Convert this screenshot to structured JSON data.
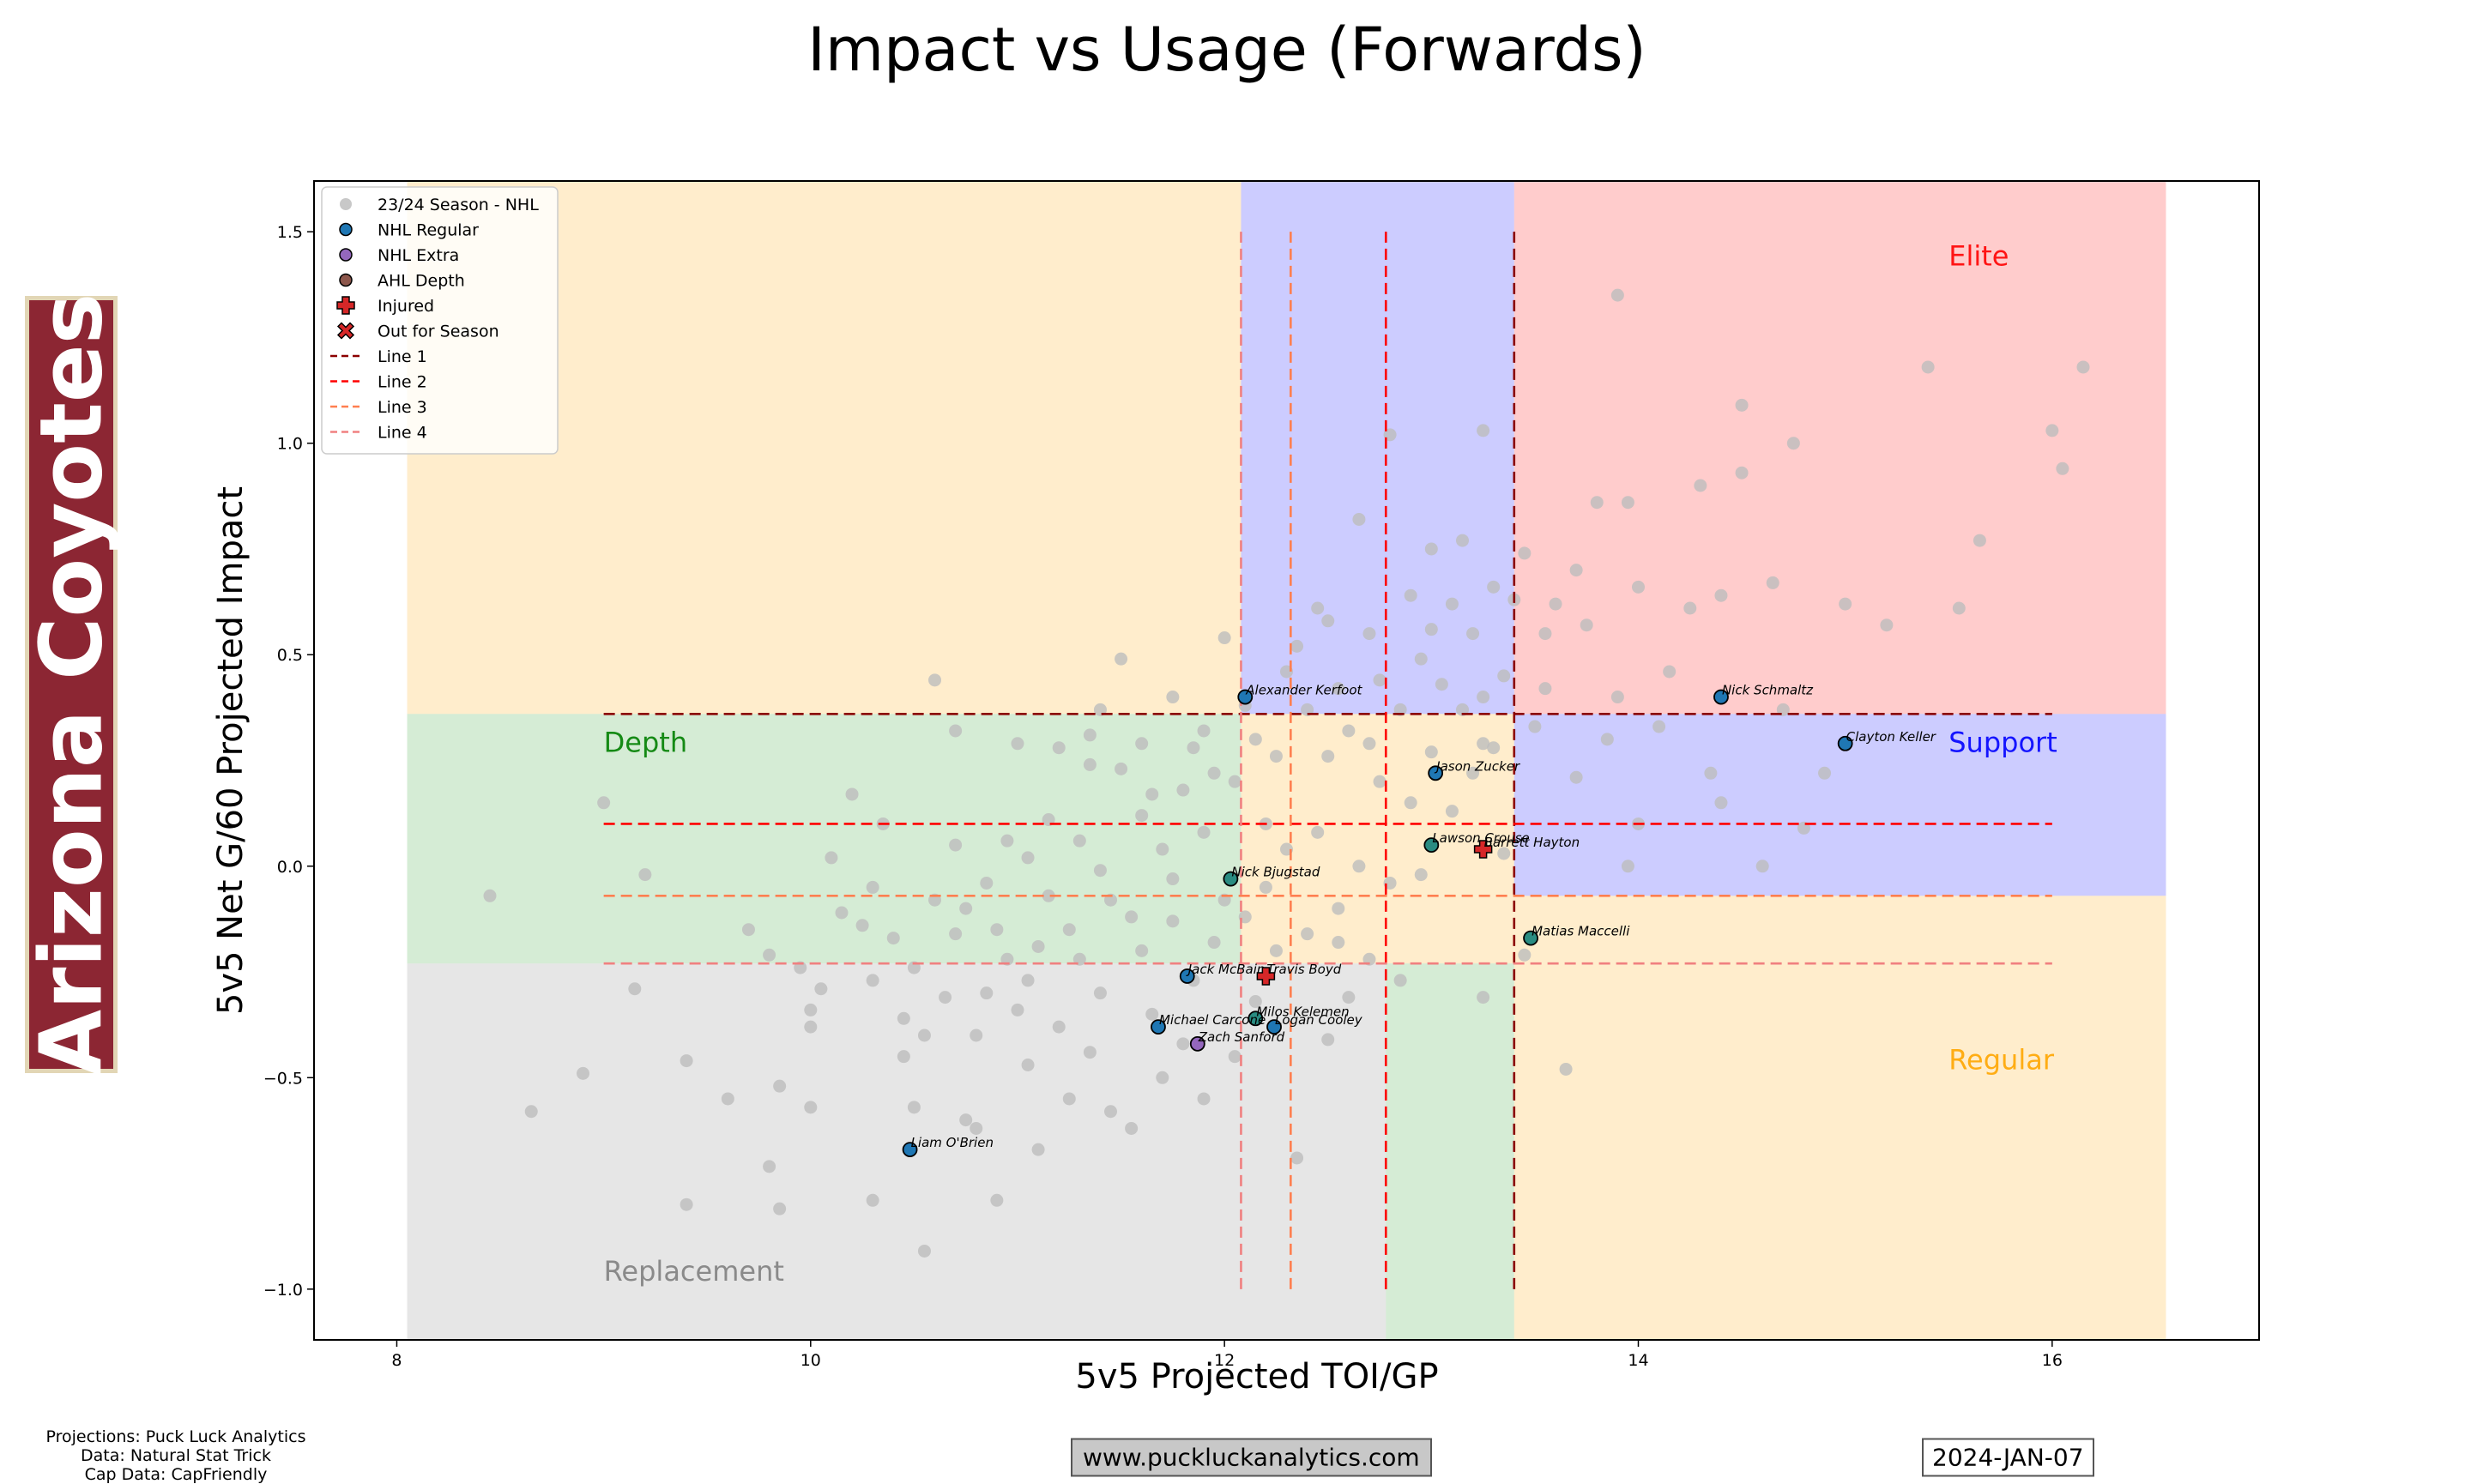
{
  "chart_data": {
    "type": "scatter",
    "title": "Impact vs Usage (Forwards)",
    "xlabel": "5v5 Projected TOI/GP",
    "ylabel": "5v5 Net G/60 Projected Impact",
    "xlim": [
      7.6,
      17.0
    ],
    "ylim": [
      -1.12,
      1.62
    ],
    "xticks": [
      8,
      10,
      12,
      14,
      16
    ],
    "yticks": [
      -1.0,
      -0.5,
      0.0,
      0.5,
      1.0,
      1.5
    ],
    "grid": false,
    "legend_position": "top-left",
    "legend": [
      {
        "label": "23/24 Season - NHL",
        "kind": "dot",
        "color": "#c8c8c8"
      },
      {
        "label": "NHL Regular",
        "kind": "dot",
        "color": "#1f77b4"
      },
      {
        "label": "NHL Extra",
        "kind": "dot",
        "color": "#9467bd"
      },
      {
        "label": "AHL Depth",
        "kind": "dot",
        "color": "#8c564b"
      },
      {
        "label": "Injured",
        "kind": "plus",
        "color": "#d62728"
      },
      {
        "label": "Out for Season",
        "kind": "cross",
        "color": "#d62728"
      },
      {
        "label": "Line 1",
        "kind": "line",
        "color": "#8b0000"
      },
      {
        "label": "Line 2",
        "kind": "line",
        "color": "#ff0000"
      },
      {
        "label": "Line 3",
        "kind": "line",
        "color": "#ff7f50"
      },
      {
        "label": "Line 4",
        "kind": "line",
        "color": "#f08080"
      }
    ],
    "regions": [
      {
        "name": "Depth",
        "x": [
          8.05,
          12.08
        ],
        "y": [
          -0.23,
          0.36
        ],
        "color": "#2ca02c",
        "label_at": [
          9.0,
          0.27
        ],
        "label_color": "#008000"
      },
      {
        "name": "Elite",
        "x": [
          13.4,
          16.55
        ],
        "y": [
          0.36,
          1.62
        ],
        "color": "#ff0000",
        "label_at": [
          15.5,
          1.42
        ],
        "label_color": "#ff0000"
      },
      {
        "name": "Support",
        "x": [
          13.4,
          16.55
        ],
        "y": [
          -0.07,
          0.36
        ],
        "color": "#0000ff",
        "label_at": [
          15.5,
          0.27
        ],
        "label_color": "#0000ff"
      },
      {
        "name": "Regular",
        "x": [
          13.4,
          16.55
        ],
        "y": [
          -1.12,
          -0.07
        ],
        "color": "#ffa500",
        "label_at": [
          15.5,
          -0.48
        ],
        "label_color": "#ffa500"
      },
      {
        "name": "Replacement",
        "x": [
          8.05,
          12.78
        ],
        "y": [
          -1.12,
          -0.23
        ],
        "color": "#808080",
        "label_at": [
          9.0,
          -0.98
        ],
        "label_color": "#808080"
      }
    ],
    "extra_shading": [
      {
        "x": [
          8.05,
          12.08
        ],
        "y": [
          0.36,
          1.62
        ],
        "color": "#ffa500"
      },
      {
        "x": [
          12.08,
          12.78
        ],
        "y": [
          -0.23,
          0.36
        ],
        "color": "#ffa500"
      },
      {
        "x": [
          12.78,
          13.4
        ],
        "y": [
          -0.23,
          0.36
        ],
        "color": "#ffa500"
      },
      {
        "x": [
          12.08,
          13.4
        ],
        "y": [
          0.36,
          1.62
        ],
        "color": "#0000ff"
      },
      {
        "x": [
          12.78,
          13.4
        ],
        "y": [
          -1.12,
          -0.23
        ],
        "color": "#2ca02c"
      }
    ],
    "lines": [
      {
        "name": "Line 1",
        "color": "#8b0000",
        "h": {
          "y": 0.36,
          "x": [
            9.0,
            16.0
          ]
        },
        "v": [
          {
            "x": 13.4,
            "y": [
              -1.0,
              1.5
            ]
          }
        ]
      },
      {
        "name": "Line 2",
        "color": "#ff0000",
        "h": {
          "y": 0.1,
          "x": [
            9.0,
            16.0
          ]
        },
        "v": [
          {
            "x": 12.78,
            "y": [
              -1.0,
              1.5
            ]
          }
        ]
      },
      {
        "name": "Line 3",
        "color": "#ff7f50",
        "h": {
          "y": -0.07,
          "x": [
            9.0,
            16.0
          ]
        },
        "v": [
          {
            "x": 12.32,
            "y": [
              -1.0,
              1.5
            ]
          }
        ]
      },
      {
        "name": "Line 4",
        "color": "#f08080",
        "h": {
          "y": -0.23,
          "x": [
            9.0,
            16.0
          ]
        },
        "v": [
          {
            "x": 12.08,
            "y": [
              -1.0,
              1.5
            ]
          }
        ]
      }
    ],
    "league_points": [
      [
        8.45,
        -0.07
      ],
      [
        8.65,
        -0.58
      ],
      [
        8.9,
        -0.49
      ],
      [
        9.0,
        0.15
      ],
      [
        9.15,
        -0.29
      ],
      [
        9.2,
        -0.02
      ],
      [
        9.4,
        -0.46
      ],
      [
        9.4,
        -0.8
      ],
      [
        9.6,
        -0.55
      ],
      [
        9.7,
        -0.15
      ],
      [
        9.8,
        -0.21
      ],
      [
        9.8,
        -0.71
      ],
      [
        9.85,
        -0.52
      ],
      [
        9.85,
        -0.81
      ],
      [
        9.95,
        -0.24
      ],
      [
        10.0,
        -0.34
      ],
      [
        10.0,
        -0.38
      ],
      [
        10.0,
        -0.57
      ],
      [
        10.05,
        -0.29
      ],
      [
        10.1,
        0.02
      ],
      [
        10.15,
        -0.11
      ],
      [
        10.2,
        0.17
      ],
      [
        10.25,
        -0.14
      ],
      [
        10.3,
        -0.05
      ],
      [
        10.3,
        -0.27
      ],
      [
        10.3,
        -0.79
      ],
      [
        10.4,
        -0.17
      ],
      [
        10.45,
        -0.36
      ],
      [
        10.45,
        -0.45
      ],
      [
        10.5,
        -0.24
      ],
      [
        10.5,
        -0.57
      ],
      [
        10.55,
        -0.4
      ],
      [
        10.55,
        -0.91
      ],
      [
        10.6,
        0.44
      ],
      [
        10.6,
        -0.08
      ],
      [
        10.65,
        -0.31
      ],
      [
        10.7,
        0.32
      ],
      [
        10.7,
        -0.16
      ],
      [
        10.75,
        -0.1
      ],
      [
        10.75,
        -0.6
      ],
      [
        10.8,
        -0.4
      ],
      [
        10.8,
        -0.62
      ],
      [
        10.85,
        -0.04
      ],
      [
        10.85,
        -0.3
      ],
      [
        10.9,
        -0.15
      ],
      [
        10.9,
        -0.79
      ],
      [
        10.95,
        0.06
      ],
      [
        10.95,
        -0.22
      ],
      [
        11.0,
        0.29
      ],
      [
        11.0,
        -0.34
      ],
      [
        11.05,
        -0.27
      ],
      [
        11.05,
        -0.47
      ],
      [
        11.1,
        -0.19
      ],
      [
        11.1,
        -0.67
      ],
      [
        11.15,
        0.11
      ],
      [
        11.15,
        -0.07
      ],
      [
        11.2,
        -0.38
      ],
      [
        11.25,
        -0.15
      ],
      [
        11.25,
        -0.55
      ],
      [
        11.3,
        0.06
      ],
      [
        11.3,
        -0.22
      ],
      [
        11.35,
        0.24
      ],
      [
        11.35,
        -0.44
      ],
      [
        11.4,
        0.37
      ],
      [
        11.4,
        -0.3
      ],
      [
        11.45,
        -0.08
      ],
      [
        11.45,
        -0.58
      ],
      [
        11.5,
        0.49
      ],
      [
        11.5,
        0.23
      ],
      [
        11.55,
        -0.12
      ],
      [
        11.55,
        -0.62
      ],
      [
        11.6,
        0.29
      ],
      [
        11.6,
        -0.2
      ],
      [
        11.65,
        0.17
      ],
      [
        11.65,
        -0.35
      ],
      [
        11.7,
        0.04
      ],
      [
        11.7,
        -0.5
      ],
      [
        11.75,
        0.4
      ],
      [
        11.75,
        -0.13
      ],
      [
        11.8,
        0.18
      ],
      [
        11.8,
        -0.42
      ],
      [
        11.85,
        0.28
      ],
      [
        11.85,
        -0.27
      ],
      [
        11.9,
        0.08
      ],
      [
        11.9,
        -0.55
      ],
      [
        11.95,
        0.22
      ],
      [
        11.95,
        -0.18
      ],
      [
        12.0,
        0.54
      ],
      [
        12.0,
        -0.08
      ],
      [
        12.05,
        0.2
      ],
      [
        12.05,
        -0.45
      ],
      [
        12.1,
        0.38
      ],
      [
        12.1,
        -0.12
      ],
      [
        12.15,
        0.3
      ],
      [
        12.15,
        -0.32
      ],
      [
        12.2,
        0.1
      ],
      [
        12.2,
        -0.05
      ],
      [
        12.25,
        0.26
      ],
      [
        12.25,
        -0.2
      ],
      [
        12.3,
        0.46
      ],
      [
        12.3,
        0.04
      ],
      [
        12.35,
        -0.69
      ],
      [
        12.4,
        0.37
      ],
      [
        12.4,
        -0.16
      ],
      [
        12.45,
        0.61
      ],
      [
        12.45,
        0.08
      ],
      [
        12.5,
        0.26
      ],
      [
        12.5,
        -0.41
      ],
      [
        12.55,
        0.42
      ],
      [
        12.55,
        -0.1
      ],
      [
        12.6,
        0.32
      ],
      [
        12.6,
        -0.31
      ],
      [
        12.65,
        0.82
      ],
      [
        12.65,
        0.0
      ],
      [
        12.7,
        0.55
      ],
      [
        12.7,
        -0.22
      ],
      [
        12.75,
        0.44
      ],
      [
        12.75,
        0.2
      ],
      [
        12.8,
        1.02
      ],
      [
        12.8,
        -0.04
      ],
      [
        12.85,
        0.37
      ],
      [
        12.9,
        0.64
      ],
      [
        12.9,
        0.15
      ],
      [
        12.95,
        0.49
      ],
      [
        12.95,
        -0.02
      ],
      [
        13.0,
        0.75
      ],
      [
        13.0,
        0.27
      ],
      [
        13.05,
        0.43
      ],
      [
        13.1,
        0.62
      ],
      [
        13.1,
        0.13
      ],
      [
        13.15,
        0.77
      ],
      [
        13.15,
        0.37
      ],
      [
        13.2,
        0.55
      ],
      [
        13.2,
        0.22
      ],
      [
        13.25,
        1.03
      ],
      [
        13.25,
        0.4
      ],
      [
        13.3,
        0.66
      ],
      [
        13.3,
        0.28
      ],
      [
        13.35,
        0.45
      ],
      [
        13.35,
        0.03
      ],
      [
        13.4,
        0.63
      ],
      [
        13.45,
        0.74
      ],
      [
        13.5,
        0.33
      ],
      [
        13.55,
        0.55
      ],
      [
        13.6,
        0.62
      ],
      [
        13.65,
        -0.48
      ],
      [
        13.7,
        0.7
      ],
      [
        13.7,
        0.21
      ],
      [
        13.75,
        0.57
      ],
      [
        13.8,
        0.86
      ],
      [
        13.85,
        0.3
      ],
      [
        13.9,
        0.4
      ],
      [
        13.9,
        1.35
      ],
      [
        13.95,
        0.86
      ],
      [
        14.0,
        0.66
      ],
      [
        14.0,
        0.1
      ],
      [
        14.1,
        0.33
      ],
      [
        14.15,
        0.46
      ],
      [
        14.25,
        0.61
      ],
      [
        14.3,
        0.9
      ],
      [
        14.35,
        0.22
      ],
      [
        14.4,
        0.64
      ],
      [
        14.5,
        0.93
      ],
      [
        14.5,
        1.09
      ],
      [
        14.6,
        0.0
      ],
      [
        14.65,
        0.67
      ],
      [
        14.7,
        0.37
      ],
      [
        14.75,
        1.0
      ],
      [
        14.8,
        0.09
      ],
      [
        14.9,
        0.22
      ],
      [
        15.0,
        0.62
      ],
      [
        15.2,
        0.57
      ],
      [
        15.4,
        1.18
      ],
      [
        15.55,
        0.61
      ],
      [
        15.65,
        0.77
      ],
      [
        16.0,
        1.03
      ],
      [
        16.05,
        0.94
      ],
      [
        16.15,
        1.18
      ],
      [
        11.2,
        0.28
      ],
      [
        11.35,
        0.31
      ],
      [
        11.6,
        0.12
      ],
      [
        11.9,
        0.32
      ],
      [
        12.15,
        -0.36
      ],
      [
        12.35,
        0.52
      ],
      [
        12.5,
        0.58
      ],
      [
        12.7,
        0.29
      ],
      [
        13.0,
        0.56
      ],
      [
        13.25,
        0.29
      ],
      [
        13.55,
        0.42
      ],
      [
        13.95,
        0.0
      ],
      [
        14.4,
        0.15
      ],
      [
        10.35,
        0.1
      ],
      [
        10.7,
        0.05
      ],
      [
        11.05,
        0.02
      ],
      [
        11.4,
        -0.01
      ],
      [
        11.75,
        -0.03
      ],
      [
        12.55,
        -0.18
      ],
      [
        12.85,
        -0.27
      ],
      [
        13.25,
        -0.31
      ],
      [
        13.45,
        -0.21
      ]
    ],
    "players": [
      {
        "name": "Alexander Kerfoot",
        "x": 12.1,
        "y": 0.4,
        "status": "NHL Regular"
      },
      {
        "name": "Nick Schmaltz",
        "x": 14.4,
        "y": 0.4,
        "status": "NHL Regular"
      },
      {
        "name": "Clayton Keller",
        "x": 15.0,
        "y": 0.29,
        "status": "NHL Regular"
      },
      {
        "name": "Jason Zucker",
        "x": 13.02,
        "y": 0.22,
        "status": "NHL Regular"
      },
      {
        "name": "Lawson Crouse",
        "x": 13.0,
        "y": 0.05,
        "status": "AHL Depth"
      },
      {
        "name": "Barrett Hayton",
        "x": 13.25,
        "y": 0.04,
        "status": "Injured"
      },
      {
        "name": "Nick Bjugstad",
        "x": 12.03,
        "y": -0.03,
        "status": "AHL Depth"
      },
      {
        "name": "Matias Maccelli",
        "x": 13.48,
        "y": -0.17,
        "status": "AHL Depth"
      },
      {
        "name": "Jack McBain",
        "x": 11.82,
        "y": -0.26,
        "status": "NHL Regular"
      },
      {
        "name": "Travis Boyd",
        "x": 12.2,
        "y": -0.26,
        "status": "Injured"
      },
      {
        "name": "Milos Kelemen",
        "x": 12.15,
        "y": -0.36,
        "status": "AHL Depth"
      },
      {
        "name": "Logan Cooley",
        "x": 12.24,
        "y": -0.38,
        "status": "NHL Regular"
      },
      {
        "name": "Michael Carcone",
        "x": 11.68,
        "y": -0.38,
        "status": "NHL Regular"
      },
      {
        "name": "Zach Sanford",
        "x": 11.87,
        "y": -0.42,
        "status": "NHL Extra"
      },
      {
        "name": "Liam O'Brien",
        "x": 10.48,
        "y": -0.67,
        "status": "NHL Regular"
      }
    ]
  },
  "team_name": "Arizona Coyotes",
  "credits": [
    "Projections: Puck Luck Analytics",
    "Data: Natural Stat Trick",
    "Cap Data: CapFriendly"
  ],
  "website": "www.puckluckanalytics.com",
  "date": "2024-JAN-07",
  "colors": {
    "team_banner": "#8C2633",
    "team_border": "#E2D6B5"
  }
}
